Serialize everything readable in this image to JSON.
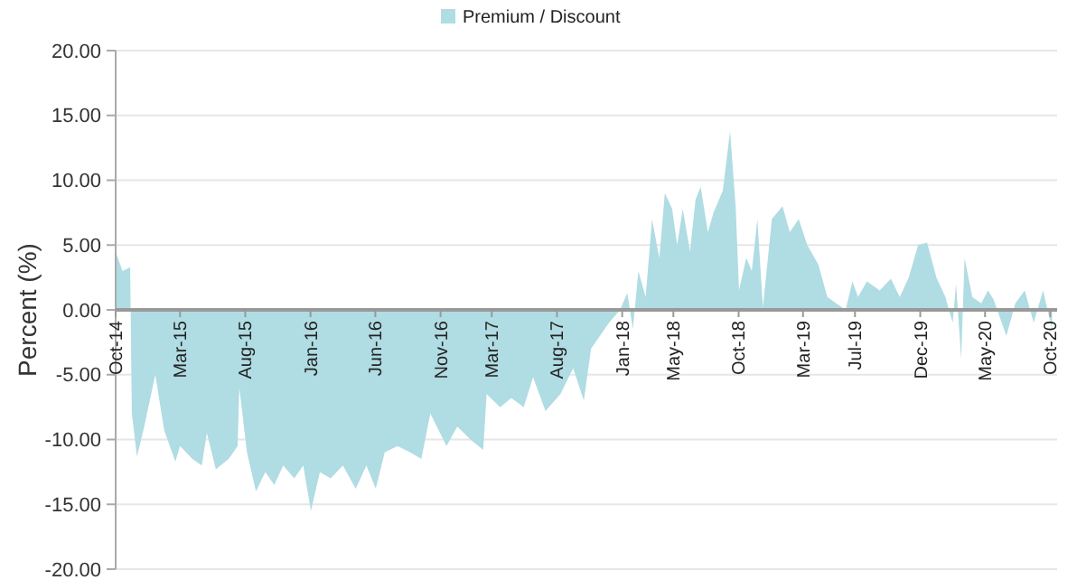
{
  "chart_data": {
    "type": "area",
    "ylabel": "Percent (%)",
    "legend": "top",
    "grid": "y",
    "xlim": [
      "2014-10-01",
      "2020-10-17"
    ],
    "ylim": [
      -20,
      20
    ],
    "yticks": [
      {
        "value": -20,
        "label": "-20.00"
      },
      {
        "value": -15,
        "label": "-15.00"
      },
      {
        "value": -10,
        "label": "-10.00"
      },
      {
        "value": -5,
        "label": "-5.00"
      },
      {
        "value": 0,
        "label": "0.00"
      },
      {
        "value": 5,
        "label": "5.00"
      },
      {
        "value": 10,
        "label": "10.00"
      },
      {
        "value": 15,
        "label": "15.00"
      },
      {
        "value": 20,
        "label": "20.00"
      }
    ],
    "xticks": [
      {
        "value": "2014-10-01",
        "label": "Oct-14"
      },
      {
        "value": "2015-03-01",
        "label": "Mar-15"
      },
      {
        "value": "2015-08-01",
        "label": "Aug-15"
      },
      {
        "value": "2016-01-01",
        "label": "Jan-16"
      },
      {
        "value": "2016-06-01",
        "label": "Jun-16"
      },
      {
        "value": "2016-11-01",
        "label": "Nov-16"
      },
      {
        "value": "2017-03-01",
        "label": "Mar-17"
      },
      {
        "value": "2017-08-01",
        "label": "Aug-17"
      },
      {
        "value": "2018-01-01",
        "label": "Jan-18"
      },
      {
        "value": "2018-05-01",
        "label": "May-18"
      },
      {
        "value": "2018-10-01",
        "label": "Oct-18"
      },
      {
        "value": "2019-03-01",
        "label": "Mar-19"
      },
      {
        "value": "2019-07-01",
        "label": "Jul-19"
      },
      {
        "value": "2019-12-01",
        "label": "Dec-19"
      },
      {
        "value": "2020-05-01",
        "label": "May-20"
      },
      {
        "value": "2020-10-01",
        "label": "Oct-20"
      }
    ],
    "x": [
      "2014-10-01",
      "2014-10-17",
      "2014-11-04",
      "2014-11-08",
      "2014-11-20",
      "2014-12-07",
      "2015-01-02",
      "2015-01-23",
      "2015-02-18",
      "2015-03-01",
      "2015-03-30",
      "2015-04-21",
      "2015-05-03",
      "2015-05-24",
      "2015-06-23",
      "2015-07-14",
      "2015-07-18",
      "2015-08-05",
      "2015-08-26",
      "2015-09-17",
      "2015-10-08",
      "2015-10-29",
      "2015-11-24",
      "2015-12-15",
      "2016-01-02",
      "2016-01-23",
      "2016-02-17",
      "2016-03-17",
      "2016-04-16",
      "2016-05-11",
      "2016-06-02",
      "2016-06-23",
      "2016-07-23",
      "2016-08-22",
      "2016-09-17",
      "2016-10-08",
      "2016-11-15",
      "2016-12-10",
      "2017-01-10",
      "2017-02-09",
      "2017-02-17",
      "2017-03-21",
      "2017-04-16",
      "2017-05-15",
      "2017-06-06",
      "2017-07-05",
      "2017-08-09",
      "2017-09-08",
      "2017-10-03",
      "2017-10-20",
      "2017-12-01",
      "2017-12-27",
      "2018-01-13",
      "2018-01-26",
      "2018-02-08",
      "2018-02-25",
      "2018-03-12",
      "2018-03-29",
      "2018-04-11",
      "2018-04-28",
      "2018-05-10",
      "2018-05-23",
      "2018-06-09",
      "2018-06-22",
      "2018-07-04",
      "2018-07-21",
      "2018-08-03",
      "2018-08-25",
      "2018-09-11",
      "2018-09-24",
      "2018-10-02",
      "2018-10-19",
      "2018-11-01",
      "2018-11-14",
      "2018-11-27",
      "2018-12-18",
      "2019-01-12",
      "2019-01-29",
      "2019-02-19",
      "2019-03-11",
      "2019-04-06",
      "2019-04-27",
      "2019-05-18",
      "2019-06-09",
      "2019-06-25",
      "2019-07-08",
      "2019-07-29",
      "2019-08-28",
      "2019-09-23",
      "2019-10-14",
      "2019-11-04",
      "2019-11-26",
      "2019-12-17",
      "2020-01-08",
      "2020-01-29",
      "2020-02-15",
      "2020-02-23",
      "2020-03-06",
      "2020-03-14",
      "2020-04-01",
      "2020-04-22",
      "2020-05-08",
      "2020-05-21",
      "2020-06-20",
      "2020-07-11",
      "2020-08-02",
      "2020-08-23",
      "2020-09-14",
      "2020-10-05"
    ],
    "series": [
      {
        "name": "Premium / Discount",
        "color": "#b0dce3",
        "values": [
          4.5,
          3,
          3.3,
          -8,
          -11.3,
          -9,
          -5,
          -9.3,
          -11.7,
          -10.5,
          -11.5,
          -12,
          -9.5,
          -12.3,
          -11.5,
          -10.5,
          -6,
          -11,
          -14,
          -12.5,
          -13.5,
          -12,
          -13,
          -12,
          -15.5,
          -12.5,
          -13,
          -12,
          -13.8,
          -12,
          -13.8,
          -11,
          -10.5,
          -11,
          -11.5,
          -8,
          -10.5,
          -9,
          -10,
          -10.8,
          -6.5,
          -7.5,
          -6.8,
          -7.5,
          -5.2,
          -7.8,
          -6.5,
          -4.5,
          -7,
          -3,
          -1,
          0,
          1.3,
          -1.5,
          3,
          1,
          7,
          4,
          9,
          7.8,
          5,
          7.8,
          4.5,
          8.5,
          9.5,
          6,
          7.5,
          9.2,
          13.8,
          8,
          1.5,
          4,
          3,
          7,
          0.2,
          7,
          8,
          6,
          7,
          5,
          3.5,
          1,
          0.5,
          0,
          2.2,
          1,
          2.2,
          1.5,
          2.4,
          1,
          2.5,
          5,
          5.2,
          2.5,
          1,
          -1,
          2,
          -3.8,
          4,
          1,
          0.5,
          1.5,
          0.8,
          -2,
          0.5,
          1.5,
          -1,
          1.5,
          -1.5
        ]
      }
    ]
  }
}
